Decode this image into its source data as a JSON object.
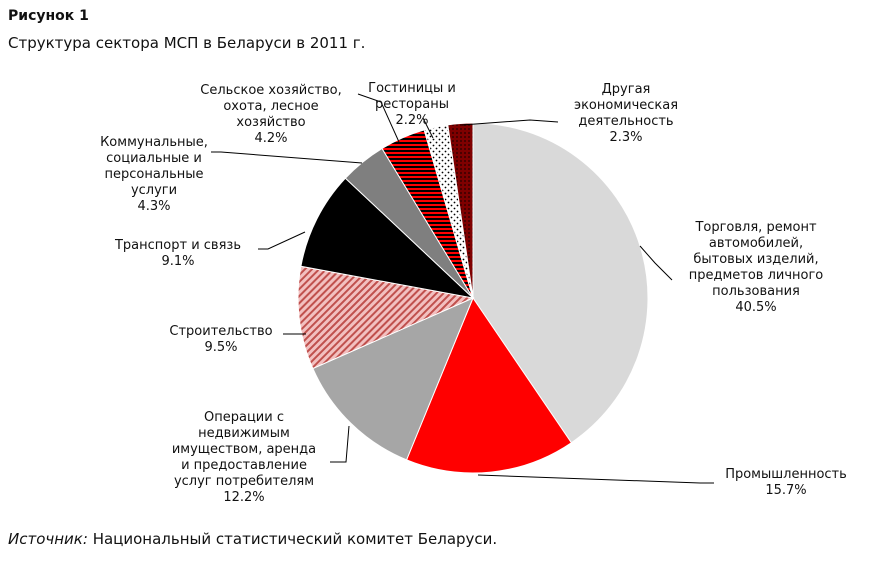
{
  "figure": {
    "heading": "Рисунок 1",
    "subtitle": "Структура сектора МСП в Беларуси в 2011 г.",
    "source_label": "Источник:",
    "source_text": "Национальный статистический комитет Беларуси."
  },
  "chart_data": {
    "type": "pie",
    "title": "Структура сектора МСП в Беларуси в 2011 г.",
    "slices": [
      {
        "label_lines": [
          "Торговля, ремонт",
          "автомобилей,",
          "бытовых изделий,",
          "предметов личного",
          "пользования"
        ],
        "value_label": "40.5%",
        "value": 40.5,
        "color": "#d9d9d9",
        "pattern": "solid"
      },
      {
        "label_lines": [
          "Промышленность"
        ],
        "value_label": "15.7%",
        "value": 15.7,
        "color": "#ff0000",
        "pattern": "solid"
      },
      {
        "label_lines": [
          "Операции с",
          "недвижимым",
          "имуществом, аренда",
          "и предоставление",
          "услуг потребителям"
        ],
        "value_label": "12.2%",
        "value": 12.2,
        "color": "#a6a6a6",
        "pattern": "solid"
      },
      {
        "label_lines": [
          "Строительство"
        ],
        "value_label": "9.5%",
        "value": 9.5,
        "color": "#c0504d",
        "pattern": "diagonal-hatch"
      },
      {
        "label_lines": [
          "Транспорт и связь"
        ],
        "value_label": "9.1%",
        "value": 9.1,
        "color": "#000000",
        "pattern": "solid"
      },
      {
        "label_lines": [
          "Коммунальные,",
          "социальные и",
          "персональные",
          "услуги"
        ],
        "value_label": "4.3%",
        "value": 4.3,
        "color": "#7f7f7f",
        "pattern": "solid"
      },
      {
        "label_lines": [
          "Сельское хозяйство,",
          "охота, лесное",
          "хозяйство"
        ],
        "value_label": "4.2%",
        "value": 4.2,
        "color": "#ff0000",
        "pattern": "horizontal-stripes"
      },
      {
        "label_lines": [
          "Гостиницы и",
          "рестораны"
        ],
        "value_label": "2.2%",
        "value": 2.2,
        "color": "#000000",
        "pattern": "dots"
      },
      {
        "label_lines": [
          "Другая",
          "экономическая",
          "деятельность"
        ],
        "value_label": "2.3%",
        "value": 2.3,
        "color": "#7f0000",
        "pattern": "dark-red"
      }
    ]
  }
}
